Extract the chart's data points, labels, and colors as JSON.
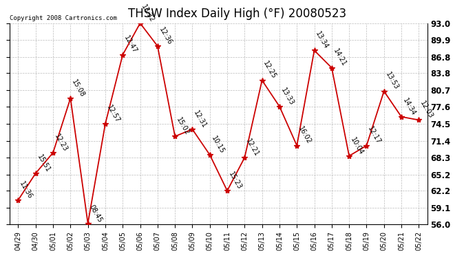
{
  "title": "THSW Index Daily High (°F) 20080523",
  "copyright": "Copyright 2008 Cartronics.com",
  "x_labels": [
    "04/29",
    "04/30",
    "05/01",
    "05/02",
    "05/03",
    "05/04",
    "05/05",
    "05/06",
    "05/07",
    "05/08",
    "05/09",
    "05/10",
    "05/11",
    "05/12",
    "05/13",
    "05/14",
    "05/15",
    "05/16",
    "05/17",
    "05/18",
    "05/19",
    "05/20",
    "05/21",
    "05/22"
  ],
  "y_values": [
    60.5,
    65.4,
    69.2,
    79.2,
    56.2,
    74.5,
    87.2,
    93.0,
    88.8,
    72.2,
    73.5,
    68.8,
    62.2,
    68.3,
    82.5,
    77.7,
    70.5,
    88.0,
    84.8,
    68.6,
    70.5,
    80.5,
    75.8,
    75.2
  ],
  "annotations": [
    "11:36",
    "15:51",
    "12:23",
    "15:08",
    "08:45",
    "12:57",
    "12:47",
    "13:32",
    "12:36",
    "15:02",
    "12:31",
    "10:15",
    "15:23",
    "12:21",
    "12:25",
    "13:33",
    "16:02",
    "13:34",
    "14:21",
    "10:04",
    "12:17",
    "13:53",
    "14:34",
    "12:03"
  ],
  "ylim": [
    56.0,
    93.0
  ],
  "yticks": [
    56.0,
    59.1,
    62.2,
    65.2,
    68.3,
    71.4,
    74.5,
    77.6,
    80.7,
    83.8,
    86.8,
    89.9,
    93.0
  ],
  "line_color": "#cc0000",
  "marker_color": "#cc0000",
  "bg_color": "#ffffff",
  "grid_color": "#aaaaaa",
  "title_fontsize": 12,
  "annot_fontsize": 7,
  "copyright_fontsize": 6.5
}
